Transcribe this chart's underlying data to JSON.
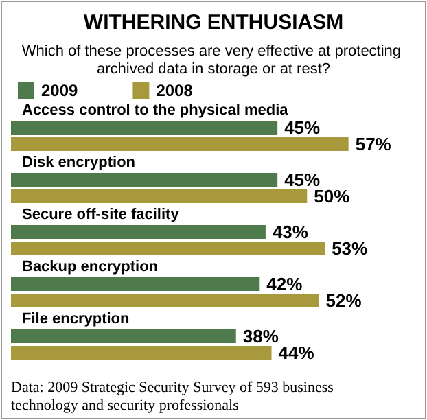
{
  "chart_data": {
    "type": "bar",
    "orientation": "horizontal",
    "title": "WITHERING ENTHUSIASM",
    "subtitle": "Which of these processes are very effective at protecting archived data in storage or at rest?",
    "categories": [
      "Access control to the physical media",
      "Disk encryption",
      "Secure off-site facility",
      "Backup encryption",
      "File encryption"
    ],
    "series": [
      {
        "name": "2009",
        "color": "#4e7a4c",
        "values": [
          45,
          45,
          43,
          42,
          38
        ],
        "value_labels": [
          "45%",
          "45%",
          "43%",
          "42%",
          "38%"
        ]
      },
      {
        "name": "2008",
        "color": "#a89a3c",
        "values": [
          57,
          50,
          53,
          52,
          44
        ],
        "value_labels": [
          "57%",
          "50%",
          "53%",
          "52%",
          "44%"
        ]
      }
    ],
    "legend": "top left",
    "annotations": [
      "Data: 2009 Strategic Security Survey of 593 business technology and security professionals"
    ]
  }
}
